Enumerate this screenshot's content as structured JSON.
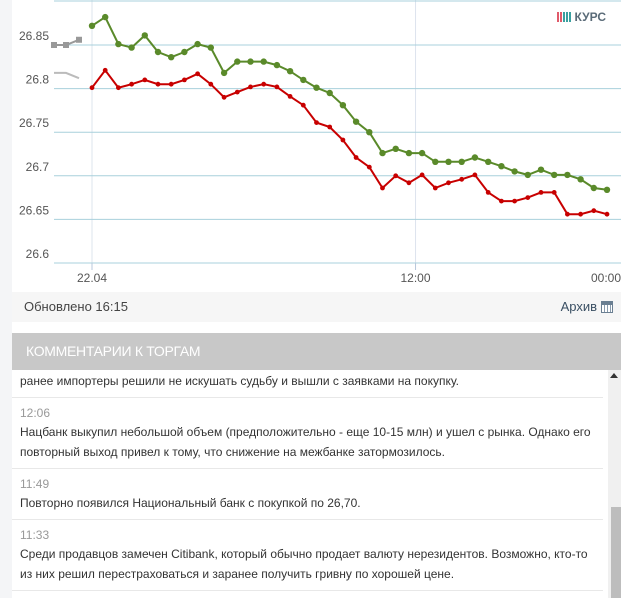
{
  "header": {
    "legend_label": "КУРС",
    "legend_icon": "bar-chart-icon"
  },
  "chart_data": {
    "type": "line",
    "title": "",
    "xlabel": "",
    "ylabel": "",
    "ylim": [
      26.6,
      26.89
    ],
    "yticks": [
      26.6,
      26.65,
      26.7,
      26.75,
      26.8,
      26.85
    ],
    "ytick_labels": [
      "26.6",
      "26.65",
      "26.7",
      "26.75",
      "26.8",
      "26.85"
    ],
    "xtick_labels": [
      "22.04",
      "12:00",
      "00:00"
    ],
    "xtick_positions": [
      0,
      24.5,
      39
    ],
    "grid": true,
    "legend_position": "top-right",
    "colors": {
      "ask": "#5a8a2a",
      "bid": "#c80000",
      "grid": "#a8d0dc"
    },
    "series": [
      {
        "name": "green",
        "color": "#5a8a2a",
        "values": [
          26.872,
          26.882,
          26.851,
          26.847,
          26.861,
          26.842,
          26.836,
          26.842,
          26.851,
          26.847,
          26.818,
          26.831,
          26.831,
          26.831,
          26.827,
          26.82,
          26.81,
          26.801,
          26.795,
          26.781,
          26.762,
          26.75,
          26.726,
          26.731,
          26.726,
          26.726,
          26.716,
          26.716,
          26.716,
          26.721,
          26.716,
          26.711,
          26.705,
          26.701,
          26.707,
          26.701,
          26.701,
          26.696,
          26.686,
          26.684
        ]
      },
      {
        "name": "red",
        "color": "#c80000",
        "values": [
          26.801,
          26.821,
          26.801,
          26.805,
          26.81,
          26.805,
          26.805,
          26.81,
          26.817,
          26.805,
          26.79,
          26.796,
          26.802,
          26.805,
          26.802,
          26.791,
          26.781,
          26.761,
          26.756,
          26.741,
          26.721,
          26.71,
          26.686,
          26.7,
          26.692,
          26.701,
          26.686,
          26.692,
          26.696,
          26.701,
          26.681,
          26.671,
          26.671,
          26.675,
          26.681,
          26.681,
          26.656,
          26.656,
          26.66,
          26.656
        ]
      }
    ],
    "previous_day_markers": [
      {
        "name": "prev-green",
        "color": "#999999",
        "values": [
          26.85,
          26.85,
          26.856
        ]
      },
      {
        "name": "prev-red",
        "color": "#bbbbbb",
        "values": [
          26.818,
          26.818,
          26.812
        ]
      }
    ]
  },
  "status": {
    "updated": "Обновлено 16:15",
    "archive_label": "Архив",
    "archive_icon": "calendar-icon"
  },
  "comments": {
    "title": "КОММЕНТАРИИ К ТОРГАМ",
    "items": [
      {
        "time": "",
        "text": "ранее импортеры решили не искушать судьбу и вышли с заявками на покупку."
      },
      {
        "time": "12:06",
        "text": "Нацбанк выкупил небольшой объем (предположительно - еще 10-15 млн) и ушел с рынка. Однако его повторный выход привел к тому, что снижение на межбанке затормозилось."
      },
      {
        "time": "11:49",
        "text": "Повторно появился Национальный банк с покупкой по 26,70."
      },
      {
        "time": "11:33",
        "text": "Среди продавцов замечен Citibank, который обычно продает валюту нерезидентов. Возможно, кто-то из них решил перестраховаться и заранее получить гривну по хорошей цене."
      }
    ]
  }
}
